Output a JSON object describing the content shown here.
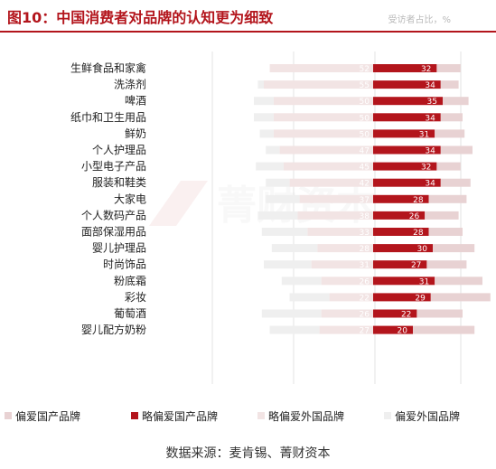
{
  "title": "图10：中国消费者对品牌的认知更为细致",
  "unit": "受访者占比，%",
  "source": "数据来源：麦肯锡、菁财资本",
  "watermark": "菁财资本",
  "colors": {
    "accent": "#b3151c",
    "strong_domestic": "#e8d2d3",
    "slight_domestic": "#b3151c",
    "slight_foreign": "#f2e4e4",
    "strong_foreign": "#efefef"
  },
  "chart_data": {
    "type": "bar",
    "orientation": "horizontal",
    "stacked": "diverging",
    "title": "图10：中国消费者对品牌的认知更为细致",
    "unit": "受访者占比，%",
    "legend_position": "bottom",
    "grid": "vertical",
    "categories": [
      "生鲜食品和家禽",
      "洗涤剂",
      "啤酒",
      "纸巾和卫生用品",
      "鲜奶",
      "个人护理品",
      "小型电子产品",
      "服装和鞋类",
      "大家电",
      "个人数码产品",
      "面部保湿用品",
      "婴儿护理品",
      "时尚饰品",
      "粉底霜",
      "彩妆",
      "葡萄酒",
      "婴儿配方奶粉"
    ],
    "series": [
      {
        "name": "偏爱国产品牌",
        "color": "#e8d2d3",
        "values": [
          12,
          9,
          13,
          11,
          15,
          16,
          12,
          15,
          19,
          17,
          17,
          21,
          20,
          24,
          30,
          23,
          31
        ],
        "labels": [
          "",
          "",
          "",
          "",
          "",
          "",
          "",
          "",
          "",
          "",
          "",
          "",
          "",
          "",
          "",
          "",
          ""
        ]
      },
      {
        "name": "略偏爱国产品牌",
        "color": "#b3151c",
        "values": [
          32,
          34,
          35,
          34,
          31,
          34,
          32,
          34,
          28,
          26,
          28,
          30,
          27,
          31,
          29,
          22,
          20
        ],
        "labels": [
          "32",
          "34",
          "35",
          "34",
          "31",
          "34",
          "32",
          "34",
          "28",
          "26",
          "28",
          "30",
          "27",
          "31",
          "29",
          "22",
          "20"
        ]
      },
      {
        "name": "略偏爱外国品牌",
        "color": "#f2e4e4",
        "values": [
          52,
          55,
          50,
          50,
          50,
          47,
          45,
          42,
          37,
          38,
          33,
          28,
          31,
          26,
          22,
          26,
          27
        ],
        "labels": [
          "52",
          "55",
          "50",
          "50",
          "50",
          "47",
          "45",
          "42",
          "37",
          "38",
          "33",
          "28",
          "31",
          "26",
          "22",
          "26",
          "27"
        ]
      },
      {
        "name": "偏爱外国品牌",
        "color": "#efefef",
        "values": [
          0,
          3,
          10,
          10,
          7,
          7,
          14,
          12,
          17,
          20,
          23,
          23,
          24,
          20,
          20,
          30,
          25
        ],
        "labels": [
          "",
          "",
          "",
          "",
          "",
          "",
          "",
          "",
          "",
          "",
          "",
          "",
          "",
          "",
          "",
          "",
          ""
        ]
      }
    ]
  }
}
